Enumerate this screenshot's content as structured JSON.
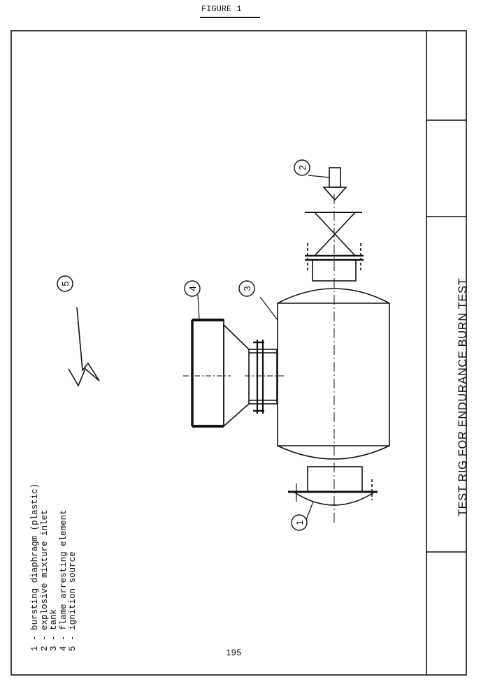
{
  "figure_label": "FIGURE 1",
  "title_block": {
    "title": "TEST RIG FOR ENDURANCE BURN TEST"
  },
  "page_number": "195",
  "legend": [
    {
      "num": "1",
      "sep": "-",
      "text": "bursting diaphragm (plastic)"
    },
    {
      "num": "2",
      "sep": "-",
      "text": "explosive mixture inlet"
    },
    {
      "num": "3",
      "sep": "-",
      "text": "tank"
    },
    {
      "num": "4",
      "sep": "-",
      "text": "flame arresting element"
    },
    {
      "num": "5",
      "sep": "-",
      "text": "ignition source"
    }
  ],
  "callouts": [
    "1",
    "2",
    "3",
    "4",
    "5"
  ]
}
